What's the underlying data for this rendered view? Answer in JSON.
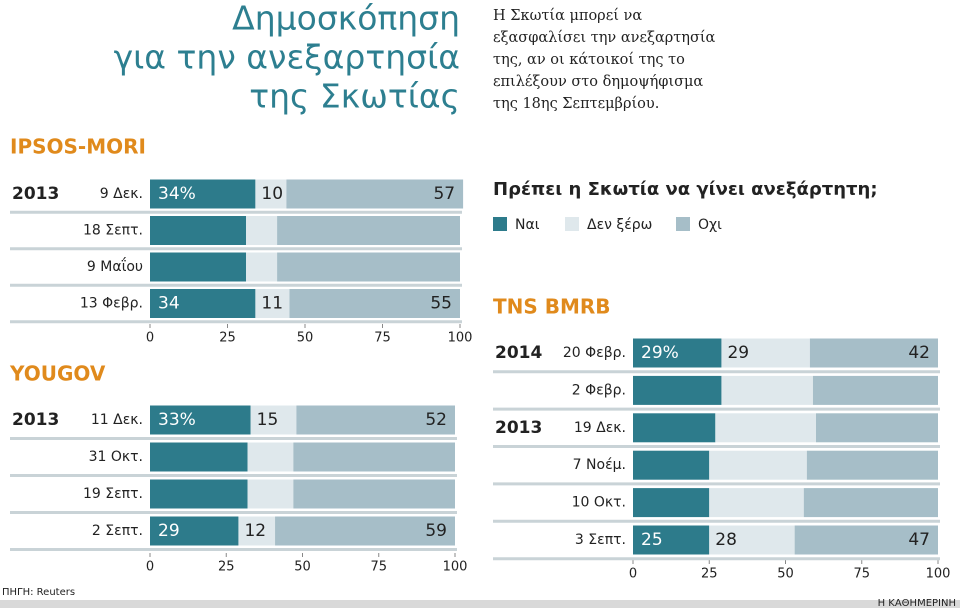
{
  "header": {
    "title_lines": [
      "Δημοσκόπηση",
      "για την ανεξαρτησία",
      "της Σκωτίας"
    ],
    "description_lines": [
      "Η Σκωτία μπορεί να",
      "εξασφαλίσει την ανεξαρτησία",
      "της, αν οι κάτοικοί της το",
      "επιλέξουν στο δημοψήφισμα",
      "της 18ης Σεπτεμβρίου."
    ],
    "source": "ΠΗΓΗ: Reuters",
    "credit": "Η ΚΑΘΗΜΕΡΙΝΗ"
  },
  "legend": {
    "title": "Πρέπει η Σκωτία να γίνει ανεξάρτητη;",
    "items": [
      {
        "name": "Ναι",
        "color": "#2d7b8b"
      },
      {
        "name": "Δεν ξέρω",
        "color": "#dfe8ec"
      },
      {
        "name": "Οχι",
        "color": "#a6bec8"
      }
    ]
  },
  "chart_data": [
    {
      "type": "bar",
      "stacked": true,
      "title": "IPSOS-MORI",
      "categories": [
        "9 Δεκ.",
        "18 Σεπτ.",
        "9 Μαΐου",
        "13 Φεβρ."
      ],
      "year_labels": [
        "2013",
        null,
        null,
        null
      ],
      "series": [
        {
          "values": [
            34,
            31,
            31,
            34
          ],
          "value_labels": [
            "34%",
            null,
            null,
            "34"
          ]
        },
        {
          "values": [
            10,
            10,
            10,
            11
          ],
          "value_labels": [
            "10",
            null,
            null,
            "11"
          ]
        },
        {
          "values": [
            57,
            59,
            59,
            55
          ],
          "value_labels": [
            "57",
            null,
            null,
            "55"
          ]
        }
      ],
      "xlim": [
        0,
        100
      ],
      "xticks": [
        0,
        25,
        50,
        75,
        100
      ]
    },
    {
      "type": "bar",
      "stacked": true,
      "title": "YOUGOV",
      "categories": [
        "11 Δεκ.",
        "31 Οκτ.",
        "19 Σεπτ.",
        "2 Σεπτ."
      ],
      "year_labels": [
        "2013",
        null,
        null,
        null
      ],
      "series": [
        {
          "values": [
            33,
            32,
            32,
            29
          ],
          "value_labels": [
            "33%",
            null,
            null,
            "29"
          ]
        },
        {
          "values": [
            15,
            15,
            15,
            12
          ],
          "value_labels": [
            "15",
            null,
            null,
            "12"
          ]
        },
        {
          "values": [
            52,
            53,
            53,
            59
          ],
          "value_labels": [
            "52",
            null,
            null,
            "59"
          ]
        }
      ],
      "xlim": [
        0,
        100
      ],
      "xticks": [
        0,
        25,
        50,
        75,
        100
      ]
    },
    {
      "type": "bar",
      "stacked": true,
      "title": "TNS BMRB",
      "categories": [
        "20 Φεβρ.",
        "2 Φεβρ.",
        "19 Δεκ.",
        "7 Νοέμ.",
        "10 Οκτ.",
        "3 Σεπτ."
      ],
      "year_labels": [
        "2014",
        null,
        "2013",
        null,
        null,
        null
      ],
      "series": [
        {
          "values": [
            29,
            29,
            27,
            25,
            25,
            25
          ],
          "value_labels": [
            "29%",
            null,
            null,
            null,
            null,
            "25"
          ]
        },
        {
          "values": [
            29,
            30,
            33,
            32,
            31,
            28
          ],
          "value_labels": [
            "29",
            null,
            null,
            null,
            null,
            "28"
          ]
        },
        {
          "values": [
            42,
            41,
            40,
            43,
            44,
            47
          ],
          "value_labels": [
            "42",
            null,
            null,
            null,
            null,
            "47"
          ]
        }
      ],
      "xlim": [
        0,
        100
      ],
      "xticks": [
        0,
        25,
        50,
        75,
        100
      ]
    }
  ]
}
